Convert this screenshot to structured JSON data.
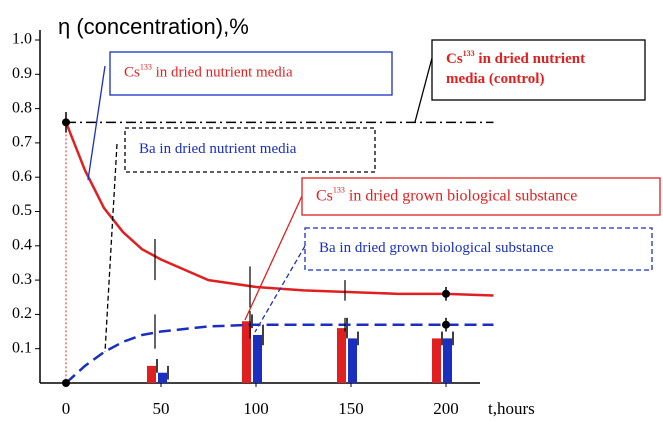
{
  "chart_data": {
    "type": "line",
    "ylabel": "η (concentration),%",
    "xlabel": "t,hours",
    "xlim": [
      -5,
      225
    ],
    "ylim": [
      0,
      1.0
    ],
    "xticks": [
      0,
      50,
      100,
      150,
      200
    ],
    "yticks": [
      0.1,
      0.2,
      0.3,
      0.4,
      0.5,
      0.6,
      0.7,
      0.8,
      0.9,
      {
        "value": 1.0,
        "label": "1.0"
      }
    ],
    "x": [
      0,
      10,
      20,
      30,
      40,
      50,
      75,
      100,
      125,
      150,
      175,
      200,
      225
    ],
    "series": [
      {
        "color": "#e02020",
        "style": "solid",
        "values": [
          0.76,
          0.62,
          0.51,
          0.44,
          0.39,
          0.36,
          0.3,
          0.28,
          0.27,
          0.265,
          0.26,
          0.26,
          0.255
        ]
      },
      {
        "color": "#1a2fc0",
        "style": "dashed",
        "values": [
          0,
          0.05,
          0.09,
          0.12,
          0.14,
          0.15,
          0.165,
          0.17,
          0.17,
          0.17,
          0.17,
          0.17,
          0.17
        ]
      }
    ],
    "control": {
      "color": "#000000",
      "value": 0.76,
      "xlim": [
        0,
        225
      ]
    },
    "bars": {
      "x": [
        50,
        100,
        150,
        200
      ],
      "series": [
        {
          "color": "#e02020",
          "values": [
            0.05,
            0.18,
            0.16,
            0.13
          ],
          "errors": [
            0.02,
            0.02,
            0.03,
            0.02
          ]
        },
        {
          "color": "#1a2fc0",
          "values": [
            0.03,
            0.14,
            0.13,
            0.13
          ],
          "errors": [
            0.02,
            0.03,
            0.02,
            0.02
          ]
        }
      ]
    },
    "markers": {
      "x": [
        0,
        0,
        200,
        200
      ],
      "values": [
        0.76,
        0,
        0.26,
        0.17
      ],
      "errors": [
        0.03,
        0.01,
        0.02,
        0.02
      ]
    },
    "curve_errors": {
      "x": [
        50,
        100,
        150,
        50,
        100,
        150
      ],
      "values": [
        0.36,
        0.28,
        0.27,
        0.15,
        0.17,
        0.17
      ],
      "errors": [
        0.06,
        0.06,
        0.03,
        0.05,
        0.04,
        0.02
      ]
    },
    "annotations": [
      {
        "prefix": "Cs",
        "sup": "133",
        "lines": [
          " in dried nutrient media"
        ]
      },
      {
        "prefix": "Cs",
        "sup": "133",
        "lines": [
          " in dried nutrient",
          "media (control)"
        ]
      },
      {
        "lines": [
          "Ba in dried nutrient media"
        ]
      },
      {
        "prefix": "Cs",
        "sup": "133",
        "lines": [
          " in dried grown biological substance"
        ]
      },
      {
        "lines": [
          "Ba in dried grown biological substance"
        ]
      }
    ]
  }
}
